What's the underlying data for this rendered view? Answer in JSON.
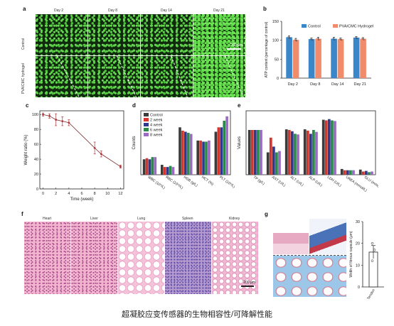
{
  "panel_labels": {
    "a": "a",
    "b": "b",
    "c": "c",
    "d": "d",
    "e": "e",
    "f": "f",
    "g": "g"
  },
  "panel_a": {
    "columns": [
      "Day 2",
      "Day 8",
      "Day 14",
      "Day 21"
    ],
    "rows": [
      "Control",
      "PVA/CMC hydrogel"
    ],
    "scale_bar": "200 μm"
  },
  "panel_f": {
    "organs": [
      "Heart",
      "Liver",
      "Lung",
      "Spleen",
      "Kidney"
    ],
    "scale_bar": "200 μm"
  },
  "caption": "超凝胶应变传感器的生物相容性/可降解性能",
  "chart_data": [
    {
      "panel": "b",
      "type": "bar",
      "categories": [
        "Day 2",
        "Day 8",
        "Day 14",
        "Day 21"
      ],
      "series": [
        {
          "name": "Control",
          "values": [
            108,
            103,
            104,
            107
          ],
          "errors": [
            4,
            3,
            4,
            3
          ],
          "color": "#3a86c8"
        },
        {
          "name": "PVA/CMC Hydrogel",
          "values": [
            101,
            104,
            103,
            104
          ],
          "errors": [
            4,
            4,
            3,
            3
          ],
          "color": "#f08c6c"
        }
      ],
      "ylabel": "ATP content (percentage of control)",
      "ylim": [
        0,
        150
      ],
      "yticks": [
        0,
        50,
        100,
        150
      ],
      "legend": "top-right"
    },
    {
      "panel": "c",
      "type": "line",
      "x": [
        0,
        1,
        2,
        3,
        4,
        8,
        9,
        12
      ],
      "y": [
        100,
        98,
        93,
        91,
        89,
        55,
        47,
        30
      ],
      "errors": [
        2,
        3,
        8,
        6,
        4,
        8,
        4,
        2
      ],
      "xlabel": "Time (week)",
      "ylabel": "Weight ratio (%)",
      "xlim": [
        -0.5,
        12.5
      ],
      "ylim": [
        0,
        105
      ],
      "xticks": [
        0,
        2,
        4,
        6,
        8,
        10,
        12
      ],
      "yticks": [
        0,
        20,
        40,
        60,
        80,
        100
      ],
      "color": "#b2343a"
    },
    {
      "panel": "d",
      "type": "bar",
      "categories": [
        "WBC (10⁹/L)",
        "RBC (10¹²/L)",
        "HGB (g/L)",
        "HCT (%)",
        "PLT (10⁹/L)"
      ],
      "series": [
        {
          "name": "Control",
          "values": [
            14,
            9,
            43,
            31,
            39
          ],
          "color": "#3b3b3b"
        },
        {
          "name": "2 week",
          "values": [
            15,
            7,
            40,
            31,
            43
          ],
          "color": "#d2362c"
        },
        {
          "name": "4 week",
          "values": [
            14,
            7,
            39,
            30,
            43
          ],
          "color": "#2f3a8f"
        },
        {
          "name": "6 week",
          "values": [
            16,
            8,
            38,
            30,
            49
          ],
          "color": "#2b8a4a"
        },
        {
          "name": "8 week",
          "values": [
            16,
            7,
            37,
            31,
            53
          ],
          "color": "#9a6bc0"
        }
      ],
      "ylabel": "Counts",
      "legend": "top-left"
    },
    {
      "panel": "e",
      "type": "bar",
      "categories": [
        "TP (g/L)",
        "AST (U/L)",
        "ALT (U/L)",
        "ALP (U/L)",
        "LDH (U/L)",
        "UREA (mmol/L)",
        "GLU (mmol/L)"
      ],
      "series": [
        {
          "name": "Control",
          "values": [
            70,
            35,
            71,
            71,
            86,
            9,
            8
          ],
          "color": "#3b3b3b"
        },
        {
          "name": "2 week",
          "values": [
            70,
            58,
            70,
            69,
            85,
            7,
            5
          ],
          "color": "#d2362c"
        },
        {
          "name": "4 week",
          "values": [
            70,
            44,
            68,
            64,
            87,
            7,
            6
          ],
          "color": "#2f3a8f"
        },
        {
          "name": "6 week",
          "values": [
            70,
            35,
            64,
            70,
            85,
            7,
            4
          ],
          "color": "#2b8a4a"
        },
        {
          "name": "8 week",
          "values": [
            70,
            37,
            63,
            67,
            84,
            7,
            5
          ],
          "color": "#9a6bc0"
        }
      ],
      "ylabel": "Values",
      "legend": "none"
    },
    {
      "panel": "g",
      "type": "scatter",
      "categories": [
        "Tendon"
      ],
      "values": [
        16
      ],
      "errors": [
        3
      ],
      "points": [
        12,
        17,
        20
      ],
      "ylabel": "Width of fibrous capsule (μm)",
      "ylim": [
        0,
        30
      ],
      "yticks": [
        0,
        10,
        20,
        30
      ],
      "color": "#222222"
    }
  ]
}
